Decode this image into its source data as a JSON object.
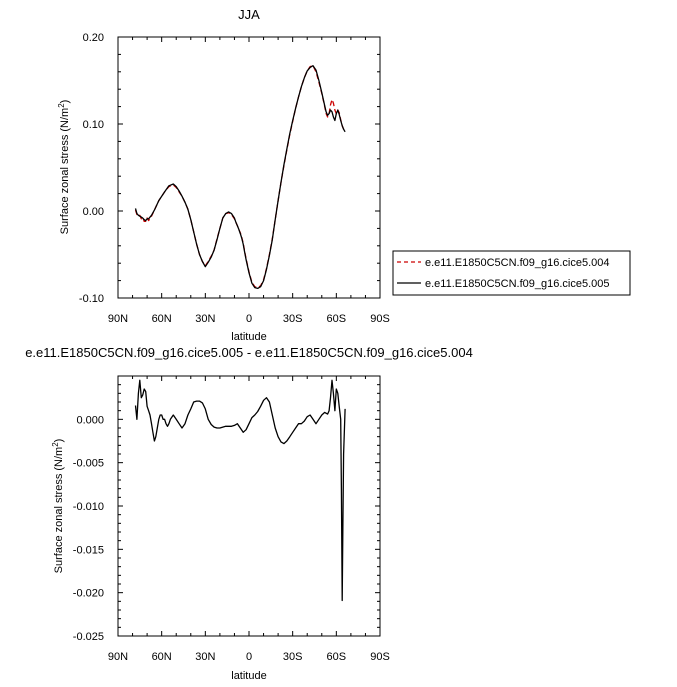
{
  "chart_data": [
    {
      "type": "line",
      "title": "JJA",
      "xlabel": "latitude",
      "ylabel": "Surface zonal stress (N/m",
      "ylabel_sup": "2",
      "ylabel_end": ")",
      "xlim": [
        90,
        -90
      ],
      "ylim": [
        -0.1,
        0.2
      ],
      "x_ticks": [
        90,
        60,
        30,
        0,
        -30,
        -60,
        -90
      ],
      "x_tick_labels": [
        "90N",
        "60N",
        "30N",
        "0",
        "30S",
        "60S",
        "90S"
      ],
      "y_ticks": [
        -0.1,
        0.0,
        0.1,
        0.2
      ],
      "y_tick_labels": [
        "-0.10",
        "0.00",
        "0.10",
        "0.20"
      ],
      "legend_position": "right",
      "series": [
        {
          "name": "e.e11.E1850C5CN.f09_g16.cice5.004",
          "color": "#cc0000",
          "dash": "dashed",
          "x": [
            78,
            77,
            76,
            75,
            74,
            73,
            72,
            71,
            70,
            69,
            67,
            65,
            62,
            58,
            55,
            52,
            50,
            48,
            46,
            44,
            42,
            40,
            38,
            36,
            34,
            32,
            30,
            28,
            26,
            24,
            22,
            20,
            18,
            16,
            14,
            12,
            10,
            9,
            8,
            7,
            6,
            5,
            4,
            3,
            2,
            0,
            -2,
            -4,
            -6,
            -8,
            -10,
            -12,
            -14,
            -16,
            -18,
            -20,
            -22,
            -24,
            -26,
            -28,
            -30,
            -32,
            -34,
            -36,
            -38,
            -40,
            -42,
            -44,
            -46,
            -48,
            -50,
            -52,
            -53,
            -54,
            -55,
            -56,
            -57,
            -58,
            -59,
            -60,
            -61,
            -62,
            -63,
            -64,
            -65,
            -66
          ],
          "y": [
            0.001,
            -0.004,
            -0.006,
            -0.005,
            -0.009,
            -0.007,
            -0.012,
            -0.012,
            -0.008,
            -0.011,
            -0.006,
            0.001,
            0.012,
            0.022,
            0.028,
            0.03,
            0.027,
            0.022,
            0.017,
            0.01,
            0.002,
            -0.01,
            -0.024,
            -0.038,
            -0.05,
            -0.058,
            -0.063,
            -0.058,
            -0.052,
            -0.045,
            -0.032,
            -0.02,
            -0.008,
            -0.003,
            -0.002,
            -0.004,
            -0.009,
            -0.013,
            -0.017,
            -0.021,
            -0.025,
            -0.03,
            -0.037,
            -0.046,
            -0.055,
            -0.07,
            -0.082,
            -0.087,
            -0.088,
            -0.086,
            -0.079,
            -0.066,
            -0.05,
            -0.032,
            -0.01,
            0.012,
            0.033,
            0.052,
            0.07,
            0.088,
            0.103,
            0.118,
            0.131,
            0.143,
            0.153,
            0.161,
            0.166,
            0.167,
            0.16,
            0.148,
            0.135,
            0.12,
            0.112,
            0.108,
            0.112,
            0.122,
            0.128,
            0.124,
            0.116,
            0.112,
            0.116,
            0.113,
            0.105,
            0.098,
            0.094,
            0.092
          ]
        },
        {
          "name": "e.e11.E1850C5CN.f09_g16.cice5.005",
          "color": "#000000",
          "dash": "solid",
          "x": [
            78,
            77,
            76,
            75,
            74,
            73,
            72,
            71,
            70,
            69,
            67,
            65,
            62,
            58,
            55,
            52,
            50,
            48,
            46,
            44,
            42,
            40,
            38,
            36,
            34,
            32,
            30,
            28,
            26,
            24,
            22,
            20,
            18,
            16,
            14,
            12,
            10,
            9,
            8,
            7,
            6,
            5,
            4,
            3,
            2,
            0,
            -2,
            -4,
            -6,
            -8,
            -10,
            -12,
            -14,
            -16,
            -18,
            -20,
            -22,
            -24,
            -26,
            -28,
            -30,
            -32,
            -34,
            -36,
            -38,
            -40,
            -42,
            -44,
            -46,
            -48,
            -50,
            -52,
            -53,
            -54,
            -55,
            -56,
            -57,
            -58,
            -59,
            -60,
            -61,
            -62,
            -63,
            -64,
            -65,
            -66
          ],
          "y": [
            0.003,
            -0.003,
            -0.005,
            -0.006,
            -0.007,
            -0.008,
            -0.01,
            -0.011,
            -0.009,
            -0.009,
            -0.005,
            0.001,
            0.012,
            0.022,
            0.029,
            0.031,
            0.028,
            0.023,
            0.017,
            0.01,
            0.002,
            -0.01,
            -0.024,
            -0.038,
            -0.05,
            -0.058,
            -0.064,
            -0.059,
            -0.053,
            -0.045,
            -0.033,
            -0.02,
            -0.008,
            -0.003,
            -0.001,
            -0.003,
            -0.008,
            -0.013,
            -0.017,
            -0.021,
            -0.026,
            -0.031,
            -0.038,
            -0.047,
            -0.056,
            -0.071,
            -0.083,
            -0.088,
            -0.089,
            -0.087,
            -0.08,
            -0.067,
            -0.051,
            -0.033,
            -0.01,
            0.012,
            0.033,
            0.053,
            0.071,
            0.089,
            0.104,
            0.118,
            0.131,
            0.143,
            0.153,
            0.161,
            0.165,
            0.167,
            0.162,
            0.15,
            0.136,
            0.121,
            0.114,
            0.11,
            0.112,
            0.116,
            0.114,
            0.108,
            0.104,
            0.112,
            0.116,
            0.111,
            0.104,
            0.098,
            0.094,
            0.091
          ]
        }
      ]
    },
    {
      "type": "line",
      "title": "e.e11.E1850C5CN.f09_g16.cice5.005 - e.e11.E1850C5CN.f09_g16.cice5.004",
      "xlabel": "latitude",
      "ylabel": "Surface zonal stress (N/m",
      "ylabel_sup": "2",
      "ylabel_end": ")",
      "xlim": [
        90,
        -90
      ],
      "ylim": [
        -0.025,
        0.005
      ],
      "x_ticks": [
        90,
        60,
        30,
        0,
        -30,
        -60,
        -90
      ],
      "x_tick_labels": [
        "90N",
        "60N",
        "30N",
        "0",
        "30S",
        "60S",
        "90S"
      ],
      "y_ticks": [
        -0.025,
        -0.02,
        -0.015,
        -0.01,
        -0.005,
        0.0
      ],
      "y_tick_labels": [
        "-0.025",
        "-0.020",
        "-0.015",
        "-0.010",
        "-0.005",
        "0.000"
      ],
      "series": [
        {
          "color": "#000000",
          "dash": "solid",
          "x": [
            78,
            77,
            76,
            75,
            74,
            73,
            72,
            71,
            70,
            69,
            68,
            67,
            66,
            65,
            64,
            63,
            62,
            61,
            60,
            59,
            58,
            57,
            56,
            55,
            54,
            52,
            50,
            48,
            46,
            44,
            42,
            40,
            38,
            36,
            34,
            32,
            30,
            28,
            26,
            24,
            22,
            20,
            18,
            16,
            14,
            12,
            10,
            8,
            6,
            4,
            2,
            0,
            -2,
            -4,
            -6,
            -8,
            -10,
            -12,
            -14,
            -16,
            -18,
            -20,
            -22,
            -24,
            -26,
            -28,
            -30,
            -32,
            -34,
            -36,
            -38,
            -40,
            -42,
            -44,
            -46,
            -48,
            -50,
            -52,
            -54,
            -55,
            -56,
            -57,
            -58,
            -59,
            -60,
            -61,
            -62,
            -63,
            -63.5,
            -64,
            -64.5,
            -65,
            -66
          ],
          "y": [
            0.0016,
            0.0,
            0.003,
            0.0045,
            0.0025,
            0.0028,
            0.0035,
            0.0032,
            0.0015,
            0.001,
            0.0005,
            -0.0005,
            -0.0015,
            -0.0025,
            -0.002,
            -0.001,
            0.0,
            0.0005,
            0.0005,
            0.0,
            0.0,
            -0.0005,
            -0.0008,
            -0.0005,
            0.0,
            0.0005,
            0.0,
            -0.0005,
            -0.001,
            -0.0005,
            0.0005,
            0.0012,
            0.002,
            0.0021,
            0.0021,
            0.0019,
            0.0012,
            0.0,
            -0.0006,
            -0.0009,
            -0.001,
            -0.001,
            -0.0009,
            -0.0008,
            -0.0008,
            -0.0008,
            -0.0007,
            -0.0005,
            -0.001,
            -0.0015,
            -0.0012,
            -0.0005,
            0.0002,
            0.0005,
            0.0009,
            0.0015,
            0.0022,
            0.0025,
            0.002,
            0.0005,
            -0.001,
            -0.002,
            -0.0026,
            -0.0028,
            -0.0025,
            -0.002,
            -0.0015,
            -0.001,
            -0.0005,
            -0.0005,
            -0.0002,
            0.0003,
            0.0005,
            0.0,
            -0.0005,
            0.0,
            0.0005,
            0.0008,
            0.0006,
            0.001,
            0.0025,
            0.0045,
            0.003,
            0.001,
            0.0035,
            0.003,
            0.0015,
            0.0,
            -0.008,
            -0.0209,
            -0.012,
            -0.004,
            0.0012
          ]
        }
      ]
    }
  ]
}
